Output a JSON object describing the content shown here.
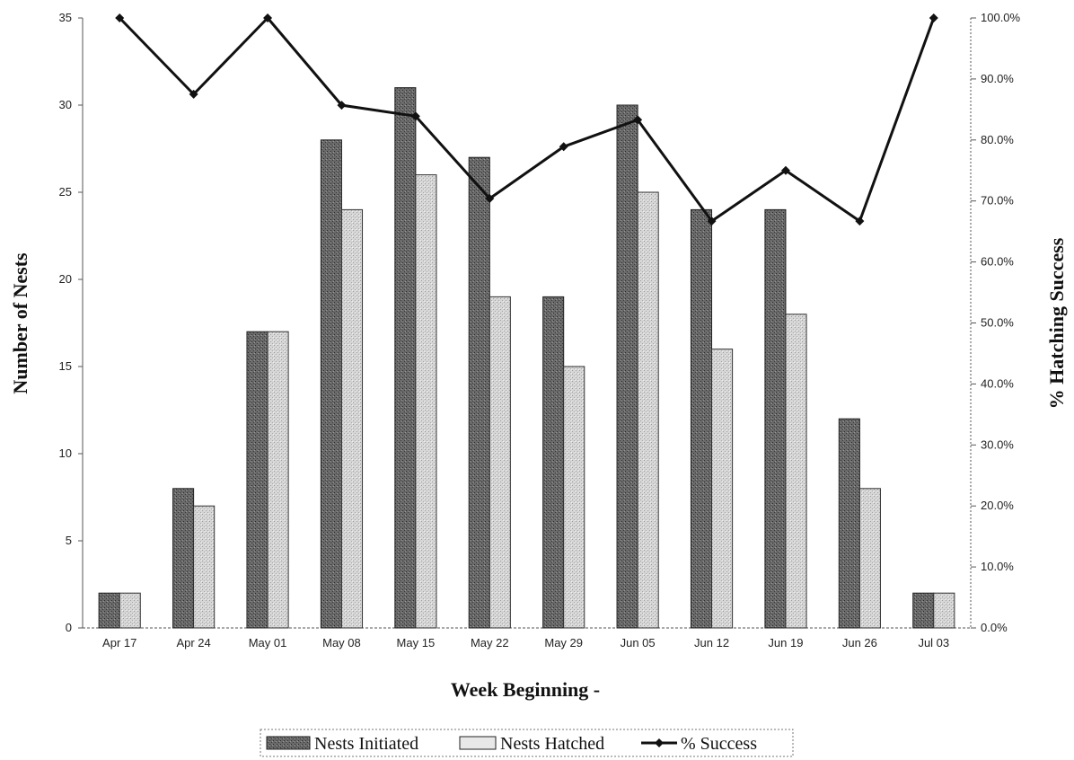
{
  "chart_data": {
    "type": "bar",
    "categories": [
      "Apr 17",
      "Apr 24",
      "May 01",
      "May 08",
      "May 15",
      "May 22",
      "May 29",
      "Jun 05",
      "Jun 12",
      "Jun 19",
      "Jun 26",
      "Jul 03"
    ],
    "series": [
      {
        "name": "Nests Initiated",
        "type": "bar",
        "axis": "left",
        "values": [
          2,
          8,
          17,
          28,
          31,
          27,
          19,
          30,
          24,
          24,
          12,
          2
        ]
      },
      {
        "name": "Nests Hatched",
        "type": "bar",
        "axis": "left",
        "values": [
          2,
          7,
          17,
          24,
          26,
          19,
          15,
          25,
          16,
          18,
          8,
          2
        ]
      },
      {
        "name": "% Success",
        "type": "line",
        "axis": "right",
        "values": [
          100.0,
          87.5,
          100.0,
          85.7,
          83.9,
          70.4,
          78.9,
          83.3,
          66.7,
          75.0,
          66.7,
          100.0
        ]
      }
    ],
    "xlabel": "Week Beginning -",
    "ylabel": "Number of Nests",
    "y2label": "% Hatching Success",
    "ylim": [
      0,
      35
    ],
    "y2lim": [
      0,
      100
    ],
    "y_ticks": [
      "0",
      "5",
      "10",
      "15",
      "20",
      "25",
      "30",
      "35"
    ],
    "y2_ticks": [
      "0.0%",
      "10.0%",
      "20.0%",
      "30.0%",
      "40.0%",
      "50.0%",
      "60.0%",
      "70.0%",
      "80.0%",
      "90.0%",
      "100.0%"
    ],
    "grid": false,
    "legend_position": "bottom",
    "colors": {
      "initiated": "#5a5a5a",
      "hatched": "#cfcfcf",
      "line": "#111111"
    }
  }
}
